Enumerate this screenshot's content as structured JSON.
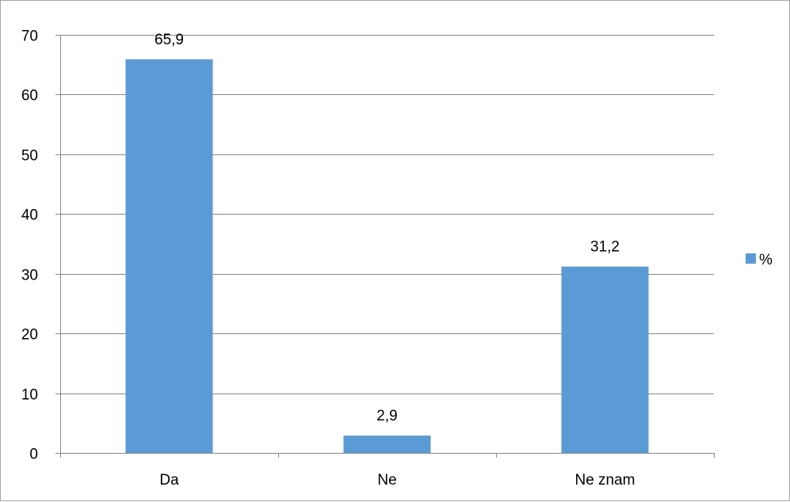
{
  "chart_data": {
    "type": "bar",
    "categories": [
      "Da",
      "Ne",
      "Ne znam"
    ],
    "series": [
      {
        "name": "%",
        "values": [
          65.9,
          2.9,
          31.2
        ],
        "data_labels": [
          "65,9",
          "2,9",
          "31,2"
        ]
      }
    ],
    "title": "",
    "xlabel": "",
    "ylabel": "",
    "ylim": [
      0,
      70
    ],
    "yticks": [
      0,
      10,
      20,
      30,
      40,
      50,
      60,
      70
    ],
    "grid": true,
    "legend_position": "right",
    "colors": {
      "bar": "#5b9bd5",
      "grid": "#878787",
      "axis": "#878787"
    }
  }
}
